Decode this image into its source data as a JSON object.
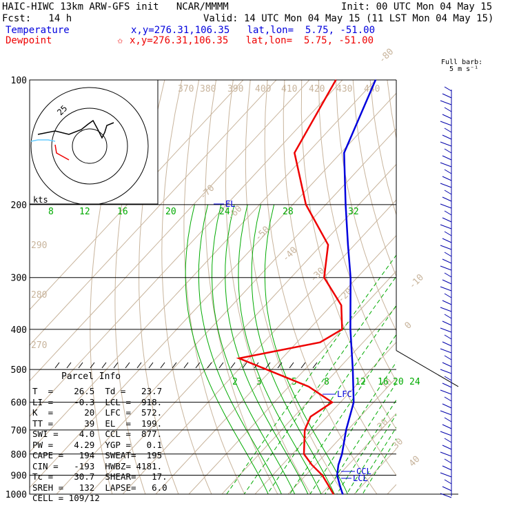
{
  "header": {
    "model": "HAIC-HIWC 13km ARW-GFS init   NCAR/MMMM",
    "init": "Init: 00 UTC Mon 04 May 15",
    "fcst": "Fcst:   14 h",
    "valid": "Valid: 14 UTC Mon 04 May 15 (11 LST Mon 04 May 15)",
    "temp_label": "Temperature",
    "temp_loc": "x,y=276.31,106.35   lat,lon=  5.75, -51.00",
    "dew_label": "Dewpoint",
    "dew_star": "✩",
    "dew_loc": "x,y=276.31,106.35   lat,lon=  5.75, -51.00"
  },
  "colors": {
    "temp": "#0000dd",
    "dew": "#ee0000",
    "adiabat": "#c8b49c",
    "mixing": "#00aa00",
    "hodo_black": "#000000",
    "hodo_cyan": "#66ccff"
  },
  "chart_data": {
    "type": "skew-t",
    "pressure_levels": [
      100,
      200,
      300,
      400,
      500,
      600,
      700,
      800,
      900,
      1000
    ],
    "skewed_temp_labels": [
      "-80",
      "-70",
      "-60",
      "-50",
      "-40",
      "-30",
      "-20",
      "-10",
      "0",
      "10",
      "20",
      "30",
      "40"
    ],
    "theta_labels": [
      "370",
      "380",
      "390",
      "400",
      "410",
      "420",
      "430",
      "440",
      "290",
      "280",
      "270"
    ],
    "mixing_ratio_upper": [
      "8",
      "12",
      "16",
      "20",
      "24",
      "28",
      "32"
    ],
    "mixing_ratio_lower": [
      "2",
      "3",
      "5",
      "8",
      "12",
      "16",
      "20",
      "24"
    ],
    "temperature_profile": [
      {
        "p": 1000,
        "t": 26.5
      },
      {
        "p": 950,
        "t": 23.0
      },
      {
        "p": 900,
        "t": 19.5
      },
      {
        "p": 850,
        "t": 17.0
      },
      {
        "p": 800,
        "t": 15.0
      },
      {
        "p": 700,
        "t": 9.5
      },
      {
        "p": 600,
        "t": 4.0
      },
      {
        "p": 500,
        "t": -5.5
      },
      {
        "p": 400,
        "t": -17.5
      },
      {
        "p": 300,
        "t": -32.0
      },
      {
        "p": 250,
        "t": -42.0
      },
      {
        "p": 200,
        "t": -54.0
      },
      {
        "p": 150,
        "t": -69.0
      },
      {
        "p": 100,
        "t": -80.0
      }
    ],
    "dewpoint_profile": [
      {
        "p": 1000,
        "t": 23.7
      },
      {
        "p": 950,
        "t": 19.5
      },
      {
        "p": 900,
        "t": 15.0
      },
      {
        "p": 850,
        "t": 9.0
      },
      {
        "p": 800,
        "t": 3.5
      },
      {
        "p": 700,
        "t": -3.0
      },
      {
        "p": 650,
        "t": -5.0
      },
      {
        "p": 600,
        "t": -2.5
      },
      {
        "p": 550,
        "t": -14.0
      },
      {
        "p": 470,
        "t": -43.0
      },
      {
        "p": 430,
        "t": -23.0
      },
      {
        "p": 400,
        "t": -20.0
      },
      {
        "p": 350,
        "t": -27.0
      },
      {
        "p": 300,
        "t": -40.0
      },
      {
        "p": 250,
        "t": -48.0
      },
      {
        "p": 200,
        "t": -66.0
      },
      {
        "p": 150,
        "t": -84.0
      },
      {
        "p": 100,
        "t": -92.0
      }
    ],
    "annotations": [
      "EL",
      "LFC",
      "CCL",
      "LCL"
    ],
    "windbarb_label": "Full barb:\n  5 m s⁻¹",
    "hodograph": {
      "units_label": "kts",
      "ring_label": "25"
    }
  },
  "parcel_info": {
    "title": "Parcel Info",
    "rows": [
      "T  =    26.5  Td =   23.7",
      "LI =    -0.3  LCL =  918.",
      "K  =      20  LFC =  572.",
      "TT =      39  EL  =  199.",
      "SWI =    4.0  CCL =  877.",
      "PW =    4.29  YGP =   0.1",
      "CAPE =   194  SWEAT=  195",
      "CIN =   -193  HWBZ= 4181.",
      "Tc =    30.7  SHEAR=   17.",
      "SREH =   132  LAPSE=   6.0",
      "CELL = 109/12"
    ]
  }
}
